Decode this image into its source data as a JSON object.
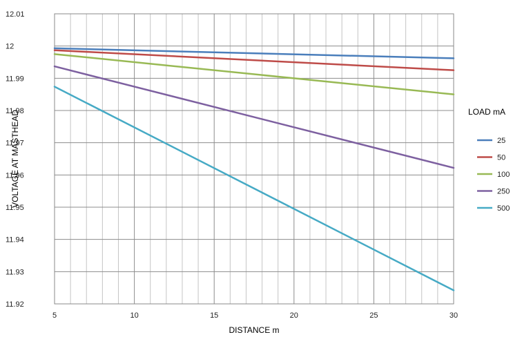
{
  "chart_data": {
    "type": "line",
    "xlabel": "DISTANCE m",
    "ylabel": "VOLTAGE AT MASTHEAD",
    "xlim": [
      5,
      30
    ],
    "ylim": [
      11.92,
      12.01
    ],
    "x_ticks": [
      5,
      10,
      15,
      20,
      25,
      30
    ],
    "y_ticks": [
      11.92,
      11.93,
      11.94,
      11.95,
      11.96,
      11.97,
      11.98,
      11.99,
      12,
      12.01
    ],
    "y_tick_labels": [
      "11.92",
      "11.93",
      "11.94",
      "11.95",
      "11.96",
      "11.97",
      "11.98",
      "11.99",
      "12",
      "12.01"
    ],
    "x_minor_step": 1,
    "grid": true,
    "legend": {
      "title": "LOAD mA",
      "position": "right"
    },
    "series": [
      {
        "name": "25",
        "color": "#4a7ebb",
        "x": [
          5,
          30
        ],
        "y": [
          11.9993,
          11.9962
        ]
      },
      {
        "name": "50",
        "color": "#be4b48",
        "x": [
          5,
          30
        ],
        "y": [
          11.9987,
          11.9925
        ]
      },
      {
        "name": "100",
        "color": "#98b954",
        "x": [
          5,
          30
        ],
        "y": [
          11.9975,
          11.985
        ]
      },
      {
        "name": "250",
        "color": "#7d60a0",
        "x": [
          5,
          30
        ],
        "y": [
          11.9937,
          11.9622
        ]
      },
      {
        "name": "500",
        "color": "#46aac5",
        "x": [
          5,
          30
        ],
        "y": [
          11.9874,
          11.9242
        ]
      }
    ]
  }
}
